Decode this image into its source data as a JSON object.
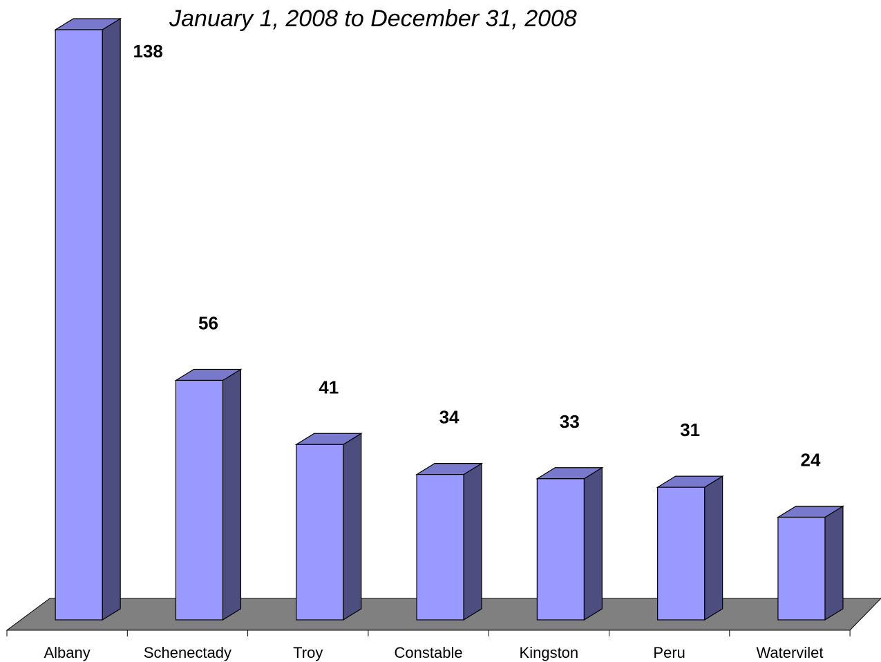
{
  "chart_data": {
    "type": "bar",
    "title": "January 1, 2008 to December 31, 2008",
    "categories": [
      "Albany",
      "Schenectady",
      "Troy",
      "Constable",
      "Kingston",
      "Peru",
      "Watervilet"
    ],
    "values": [
      138,
      56,
      41,
      34,
      33,
      31,
      24
    ],
    "xlabel": "",
    "ylabel": "",
    "ylim": [
      0,
      138
    ],
    "grid": false,
    "legend": "none",
    "colors": {
      "bar_front": "#9999ff",
      "bar_top": "#7878cc",
      "bar_side": "#4d4d80",
      "floor": "#808080"
    }
  }
}
